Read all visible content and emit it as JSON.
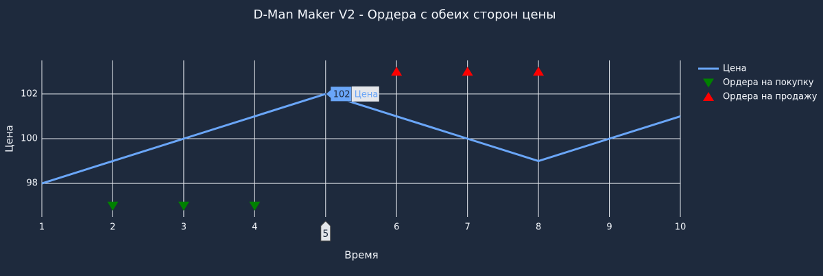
{
  "chart_data": {
    "type": "line",
    "title": "D-Man Maker V2 - Ордера с обеих сторон цены",
    "x_label": "Время",
    "y_label": "Цена",
    "xlim": [
      1,
      10
    ],
    "xticks": [
      1,
      2,
      3,
      4,
      5,
      6,
      7,
      8,
      9,
      10
    ],
    "ylim": [
      96.5,
      103.5
    ],
    "yticks": [
      98,
      100,
      102
    ],
    "grid": true,
    "legend": "right",
    "series": [
      {
        "name": "Цена",
        "color": "#6aa6f8",
        "marker": "line",
        "x": [
          1,
          2,
          3,
          4,
          5,
          6,
          7,
          8,
          9,
          10
        ],
        "values": [
          98,
          99,
          100,
          101,
          102,
          101,
          100,
          99,
          100,
          101
        ]
      },
      {
        "name": "Ордера на покупку",
        "color": "#008000",
        "marker": "triangle-down",
        "x": [
          2,
          3,
          4
        ],
        "values": [
          97,
          97,
          97
        ]
      },
      {
        "name": "Ордера на продажу",
        "color": "#ff0000",
        "marker": "triangle-up",
        "x": [
          6,
          7,
          8
        ],
        "values": [
          103,
          103,
          103
        ]
      }
    ]
  }
}
